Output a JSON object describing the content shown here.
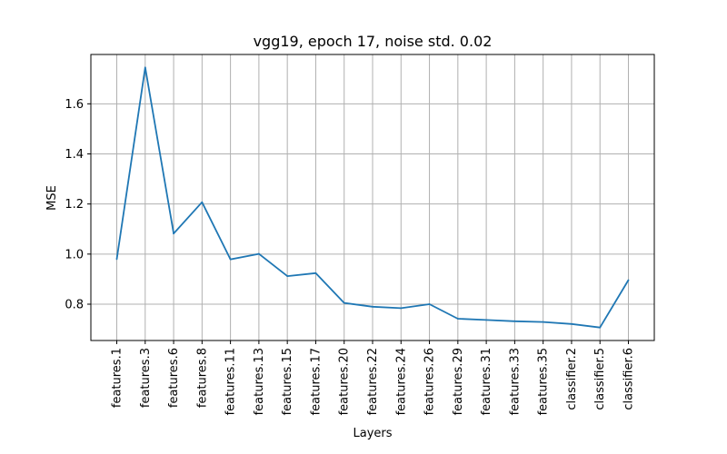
{
  "chart_data": {
    "type": "line",
    "title": "vgg19, epoch 17, noise std. 0.02",
    "xlabel": "Layers",
    "ylabel": "MSE",
    "categories": [
      "features.1",
      "features.3",
      "features.6",
      "features.8",
      "features.11",
      "features.13",
      "features.15",
      "features.17",
      "features.20",
      "features.22",
      "features.24",
      "features.26",
      "features.29",
      "features.31",
      "features.33",
      "features.35",
      "classifier.2",
      "classifier.5",
      "classifier.6"
    ],
    "series": [
      {
        "values": [
          0.98,
          1.745,
          1.082,
          1.207,
          0.979,
          1.001,
          0.912,
          0.924,
          0.805,
          0.79,
          0.784,
          0.8,
          0.742,
          0.737,
          0.732,
          0.729,
          0.721,
          0.707,
          0.896
        ],
        "color": "#1f77b4"
      }
    ],
    "yticks": [
      0.8,
      1.0,
      1.2,
      1.4,
      1.6
    ],
    "ytick_labels": [
      "0.8",
      "1.0",
      "1.2",
      "1.4",
      "1.6"
    ],
    "ylim": [
      0.655,
      1.797
    ],
    "grid": true
  }
}
